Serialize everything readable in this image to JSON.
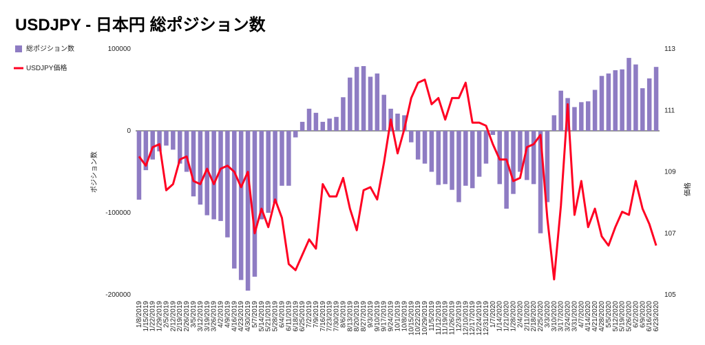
{
  "chart_data": {
    "type": "bar_line",
    "title": "USDJPY - 日本円 総ポジション数",
    "y_label": "ポジション数",
    "y2_label": "価格",
    "legend_position": "top-left",
    "categories": [
      "1/8/2019",
      "1/15/2019",
      "1/22/2019",
      "1/29/2019",
      "2/5/2019",
      "2/12/2019",
      "2/19/2019",
      "2/26/2019",
      "3/5/2019",
      "3/12/2019",
      "3/19/2019",
      "3/26/2019",
      "4/2/2019",
      "4/9/2019",
      "4/16/2019",
      "4/23/2019",
      "4/30/2019",
      "5/7/2019",
      "5/14/2019",
      "5/21/2019",
      "5/28/2019",
      "6/4/2019",
      "6/11/2019",
      "6/18/2019",
      "6/25/2019",
      "7/2/2019",
      "7/9/2019",
      "7/16/2019",
      "7/23/2019",
      "7/30/2019",
      "8/6/2019",
      "8/13/2019",
      "8/20/2019",
      "8/27/2019",
      "9/3/2019",
      "9/10/2019",
      "9/17/2019",
      "9/24/2019",
      "10/1/2019",
      "10/8/2019",
      "10/15/2019",
      "10/22/2019",
      "10/29/2019",
      "11/5/2019",
      "11/12/2019",
      "11/19/2019",
      "11/26/2019",
      "12/3/2019",
      "12/10/2019",
      "12/17/2019",
      "12/24/2019",
      "12/31/2019",
      "1/7/2020",
      "1/14/2020",
      "1/21/2020",
      "1/28/2020",
      "2/4/2020",
      "2/11/2020",
      "2/18/2020",
      "2/25/2020",
      "3/3/2020",
      "3/10/2020",
      "3/17/2020",
      "3/24/2020",
      "3/31/2020",
      "4/7/2020",
      "4/14/2020",
      "4/21/2020",
      "4/28/2020",
      "5/5/2020",
      "5/12/2020",
      "5/19/2020",
      "5/26/2020",
      "6/2/2020",
      "6/9/2020",
      "6/16/2020",
      "6/23/2020"
    ],
    "series": [
      {
        "name": "総ポジション数",
        "type": "bar",
        "color": "#8e7cc3",
        "values": [
          -84000,
          -48000,
          -35000,
          -25000,
          -18000,
          -23000,
          -40000,
          -50000,
          -80000,
          -90000,
          -103000,
          -108000,
          -110000,
          -130000,
          -168000,
          -182000,
          -195000,
          -178000,
          -108000,
          -100000,
          -88000,
          -67000,
          -67000,
          -8000,
          11000,
          27000,
          22000,
          11000,
          15000,
          17000,
          41000,
          65000,
          78000,
          79000,
          66000,
          70000,
          44000,
          27000,
          21000,
          19000,
          -14000,
          -35000,
          -40000,
          -50000,
          -66000,
          -65000,
          -72000,
          -87000,
          -67000,
          -70000,
          -56000,
          -40000,
          -5000,
          -65000,
          -95000,
          -77000,
          -50000,
          -60000,
          -65000,
          -125000,
          -87000,
          19000,
          49000,
          40000,
          29000,
          35000,
          36000,
          50000,
          67000,
          70000,
          74000,
          75000,
          89000,
          81000,
          52000,
          64000,
          78000
        ]
      },
      {
        "name": "USDJPY価格",
        "type": "line",
        "axis": "y2",
        "color": "#ff0022",
        "values": [
          109.5,
          109.2,
          109.8,
          109.9,
          108.4,
          108.6,
          109.4,
          109.5,
          108.7,
          108.6,
          109.1,
          108.6,
          109.1,
          109.2,
          109.0,
          108.5,
          109.0,
          107.0,
          107.8,
          107.2,
          108.1,
          107.5,
          106.0,
          105.8,
          106.3,
          106.8,
          106.5,
          108.6,
          108.2,
          108.2,
          108.8,
          107.8,
          107.1,
          108.4,
          108.5,
          108.1,
          109.3,
          110.7,
          109.6,
          110.4,
          111.4,
          111.9,
          112.0,
          111.2,
          111.4,
          110.7,
          111.4,
          111.4,
          111.9,
          110.6,
          110.6,
          110.5,
          109.9,
          109.4,
          109.4,
          108.7,
          108.8,
          109.8,
          109.9,
          110.2,
          107.5,
          105.5,
          107.9,
          111.2,
          107.6,
          108.7,
          107.2,
          107.8,
          106.9,
          106.6,
          107.2,
          107.7,
          107.6,
          108.7,
          107.8,
          107.3,
          106.6
        ]
      }
    ],
    "ylim": [
      -200000,
      100000
    ],
    "yticks": [
      -200000,
      -100000,
      0,
      100000
    ],
    "y2lim": [
      105,
      113
    ],
    "y2ticks": [
      105,
      107,
      109,
      111,
      113
    ]
  }
}
